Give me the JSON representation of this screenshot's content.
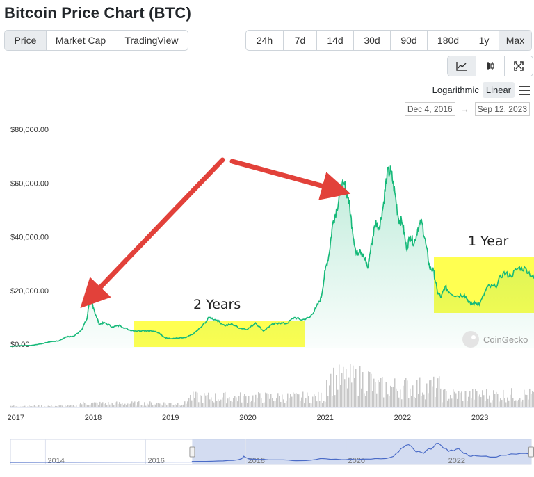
{
  "title": "Bitcoin Price Chart (BTC)",
  "tabs": [
    {
      "label": "Price",
      "active": true
    },
    {
      "label": "Market Cap",
      "active": false
    },
    {
      "label": "TradingView",
      "active": false
    }
  ],
  "ranges": [
    {
      "label": "24h",
      "active": false
    },
    {
      "label": "7d",
      "active": false
    },
    {
      "label": "14d",
      "active": false
    },
    {
      "label": "30d",
      "active": false
    },
    {
      "label": "90d",
      "active": false
    },
    {
      "label": "180d",
      "active": false
    },
    {
      "label": "1y",
      "active": false
    },
    {
      "label": "Max",
      "active": true
    }
  ],
  "chart_type_buttons": [
    {
      "name": "line-chart-icon",
      "active": true
    },
    {
      "name": "candlestick-icon",
      "active": false
    },
    {
      "name": "expand-icon",
      "active": false
    }
  ],
  "scale": {
    "logarithmic": "Logarithmic",
    "linear": "Linear",
    "selected": "Linear"
  },
  "date_range": {
    "from": "Dec 4, 2016",
    "arrow": "→",
    "to": "Sep 12, 2023"
  },
  "watermark": "CoinGecko",
  "colors": {
    "line": "#16b979",
    "highlight": "#ffff33",
    "arrow": "#e2413a",
    "navigator": "#4a6bc7",
    "volume": "#c8c8c8"
  },
  "annotations": {
    "two_years": "2 Years",
    "one_year": "1 Year"
  },
  "chart_data": {
    "type": "area",
    "ylim": [
      0,
      80000
    ],
    "yticks": [
      "$80,000.00",
      "$60,000.00",
      "$40,000.00",
      "$20,000.00",
      "$0.00"
    ],
    "ytick_values": [
      80000,
      60000,
      40000,
      20000,
      0
    ],
    "xlim": [
      2016.93,
      2023.7
    ],
    "xticks": [
      "2017",
      "2018",
      "2019",
      "2020",
      "2021",
      "2022",
      "2023"
    ],
    "xtick_values": [
      2017,
      2018,
      2019,
      2020,
      2021,
      2022,
      2023
    ],
    "grid": false,
    "series": [
      {
        "x": [
          2016.93,
          2017.05,
          2017.2,
          2017.35,
          2017.45,
          2017.55,
          2017.65,
          2017.75,
          2017.85,
          2017.92,
          2017.96,
          2018.0,
          2018.04,
          2018.08,
          2018.15,
          2018.25,
          2018.35,
          2018.45,
          2018.55,
          2018.65,
          2018.75,
          2018.85,
          2018.93,
          2019.0,
          2019.1,
          2019.2,
          2019.3,
          2019.4,
          2019.5,
          2019.6,
          2019.7,
          2019.8,
          2019.9,
          2020.0,
          2020.1,
          2020.2,
          2020.3,
          2020.4,
          2020.5,
          2020.6,
          2020.7,
          2020.8,
          2020.88,
          2020.95,
          2021.0,
          2021.05,
          2021.1,
          2021.15,
          2021.2,
          2021.25,
          2021.3,
          2021.35,
          2021.4,
          2021.45,
          2021.5,
          2021.55,
          2021.6,
          2021.65,
          2021.7,
          2021.75,
          2021.8,
          2021.85,
          2021.9,
          2021.95,
          2022.0,
          2022.05,
          2022.1,
          2022.15,
          2022.2,
          2022.25,
          2022.3,
          2022.35,
          2022.4,
          2022.45,
          2022.5,
          2022.55,
          2022.6,
          2022.7,
          2022.8,
          2022.88,
          2022.95,
          2023.0,
          2023.1,
          2023.2,
          2023.3,
          2023.4,
          2023.5,
          2023.6,
          2023.7
        ],
        "values": [
          750,
          1000,
          1100,
          1800,
          2500,
          2700,
          4300,
          4500,
          7000,
          11000,
          19500,
          15000,
          12000,
          9000,
          9500,
          8000,
          8500,
          7000,
          6500,
          6700,
          6500,
          5800,
          4000,
          3600,
          3800,
          4000,
          5500,
          8000,
          11500,
          10500,
          8500,
          9000,
          7500,
          7200,
          9500,
          6500,
          8700,
          9500,
          9200,
          11500,
          10600,
          11500,
          15000,
          19000,
          29000,
          35000,
          47000,
          52000,
          59000,
          61000,
          56000,
          45000,
          35000,
          37000,
          34000,
          30000,
          39000,
          47000,
          45000,
          53000,
          65000,
          66000,
          58000,
          48000,
          47000,
          37000,
          42000,
          39000,
          45000,
          47000,
          39000,
          30000,
          29000,
          21000,
          19000,
          23000,
          21000,
          19500,
          20000,
          16500,
          16800,
          16600,
          23000,
          23000,
          28000,
          27000,
          30000,
          29500,
          26000
        ]
      }
    ],
    "volume_bars": "grey histogram of trading volume beneath price",
    "navigator": {
      "xticks": [
        "2014",
        "2016",
        "2018",
        "2020",
        "2022"
      ],
      "xtick_values": [
        2014,
        2016,
        2018,
        2020,
        2022
      ],
      "xlim": [
        2013.3,
        2023.7
      ],
      "selection": [
        2016.93,
        2023.7
      ]
    }
  }
}
